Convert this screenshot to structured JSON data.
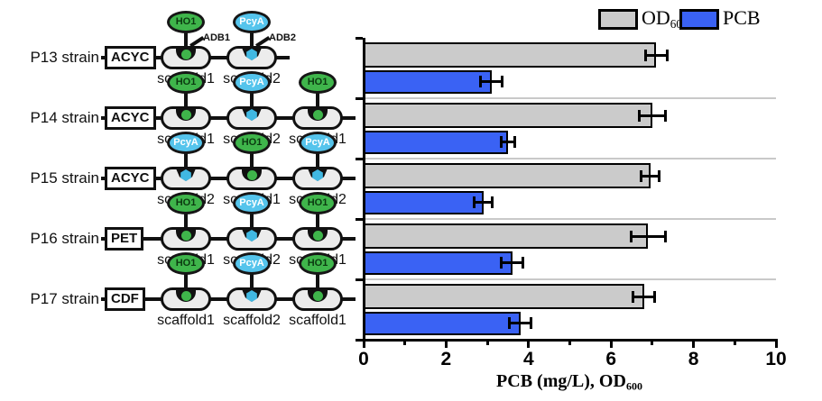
{
  "legend": {
    "od_label": "OD",
    "od_sub": "600",
    "od_color": "#cbcbcb",
    "pcb_label": "PCB",
    "pcb_color": "#3a62f4"
  },
  "axis": {
    "title_main": "PCB (mg/L), OD",
    "title_sub": "600"
  },
  "colors": {
    "ho1": "#3fb54b",
    "pcya": "#55c4ec",
    "adb1_marker": "#3fb54b",
    "adb2_marker": "#41b8e2",
    "scaffold_fill": "#ececec",
    "outline": "#111111",
    "separator": "#c9c9c9",
    "bar_gray": "#cbcbcb",
    "bar_blue": "#3a62f4"
  },
  "strains": [
    {
      "name": "P13 strain",
      "plasmid": "ACYC",
      "show_adb_labels": true,
      "scaffolds": [
        {
          "label": "scaffold1",
          "enzyme": "HO1",
          "adb": "ADB1"
        },
        {
          "label": "scaffold2",
          "enzyme": "PcyA",
          "adb": "ADB2"
        }
      ]
    },
    {
      "name": "P14 strain",
      "plasmid": "ACYC",
      "show_adb_labels": false,
      "scaffolds": [
        {
          "label": "scaffold1",
          "enzyme": "HO1"
        },
        {
          "label": "scaffold2",
          "enzyme": "PcyA"
        },
        {
          "label": "scaffold1",
          "enzyme": "HO1"
        }
      ]
    },
    {
      "name": "P15 strain",
      "plasmid": "ACYC",
      "show_adb_labels": false,
      "scaffolds": [
        {
          "label": "scaffold2",
          "enzyme": "PcyA"
        },
        {
          "label": "scaffold1",
          "enzyme": "HO1"
        },
        {
          "label": "scaffold2",
          "enzyme": "PcyA"
        }
      ]
    },
    {
      "name": "P16 strain",
      "plasmid": "PET",
      "show_adb_labels": false,
      "scaffolds": [
        {
          "label": "scaffold1",
          "enzyme": "HO1"
        },
        {
          "label": "scaffold2",
          "enzyme": "PcyA"
        },
        {
          "label": "scaffold1",
          "enzyme": "HO1"
        }
      ]
    },
    {
      "name": "P17 strain",
      "plasmid": "CDF",
      "show_adb_labels": false,
      "scaffolds": [
        {
          "label": "scaffold1",
          "enzyme": "HO1"
        },
        {
          "label": "scaffold2",
          "enzyme": "PcyA"
        },
        {
          "label": "scaffold1",
          "enzyme": "HO1"
        }
      ]
    }
  ],
  "chart_data": {
    "type": "bar",
    "orientation": "horizontal",
    "categories": [
      "P13",
      "P14",
      "P15",
      "P16",
      "P17"
    ],
    "series": [
      {
        "name": "OD600",
        "color": "#cbcbcb",
        "values": [
          7.1,
          7.0,
          6.95,
          6.9,
          6.8
        ],
        "errors": [
          0.3,
          0.35,
          0.25,
          0.45,
          0.3
        ]
      },
      {
        "name": "PCB",
        "color": "#3a62f4",
        "values": [
          3.1,
          3.5,
          2.9,
          3.6,
          3.8
        ],
        "errors": [
          0.3,
          0.2,
          0.25,
          0.3,
          0.3
        ]
      }
    ],
    "xlabel": "PCB (mg/L), OD600",
    "xlim": [
      0,
      10
    ],
    "xticks": [
      0,
      2,
      4,
      6,
      8,
      10
    ],
    "minor_xticks": [
      1,
      3,
      5,
      7,
      9
    ],
    "legend_position": "top-right",
    "grid": false
  }
}
